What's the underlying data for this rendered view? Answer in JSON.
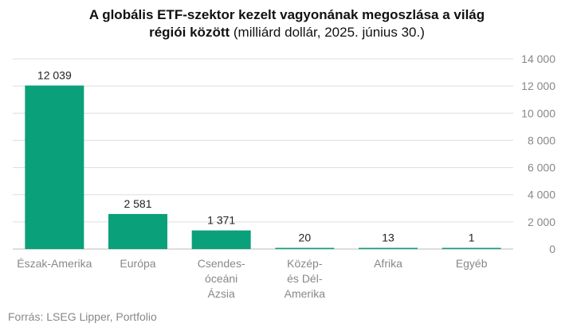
{
  "title": {
    "line1": "A globális ETF-szektor kezelt vagyonának megoszlása a világ",
    "line2_bold": "régiói között",
    "line2_normal": "(milliárd dollár, 2025. június 30.)"
  },
  "source": "Forrás: LSEG Lipper, Portfolio",
  "chart_data": {
    "type": "bar",
    "categories": [
      "Észak-Amerika",
      "Európa",
      "Csendes-óceáni Ázsia",
      "Közép- és Dél-Amerika",
      "Afrika",
      "Egyéb"
    ],
    "category_lines": [
      [
        "Észak-Amerika"
      ],
      [
        "Európa"
      ],
      [
        "Csendes-",
        "óceáni",
        "Ázsia"
      ],
      [
        "Közép-",
        "és Dél-",
        "Amerika"
      ],
      [
        "Afrika"
      ],
      [
        "Egyéb"
      ]
    ],
    "values": [
      12039,
      2581,
      1371,
      20,
      13,
      1
    ],
    "value_labels": [
      "12 039",
      "2 581",
      "1 371",
      "20",
      "13",
      "1"
    ],
    "ylim": [
      0,
      14000
    ],
    "yticks": [
      0,
      2000,
      4000,
      6000,
      8000,
      10000,
      12000,
      14000
    ],
    "ytick_labels": [
      "0",
      "2 000",
      "4 000",
      "6 000",
      "8 000",
      "10 000",
      "12 000",
      "14 000"
    ],
    "y_axis_side": "right",
    "grid": true,
    "bar_color": "#0aa07a",
    "grid_color": "#dddddd"
  }
}
